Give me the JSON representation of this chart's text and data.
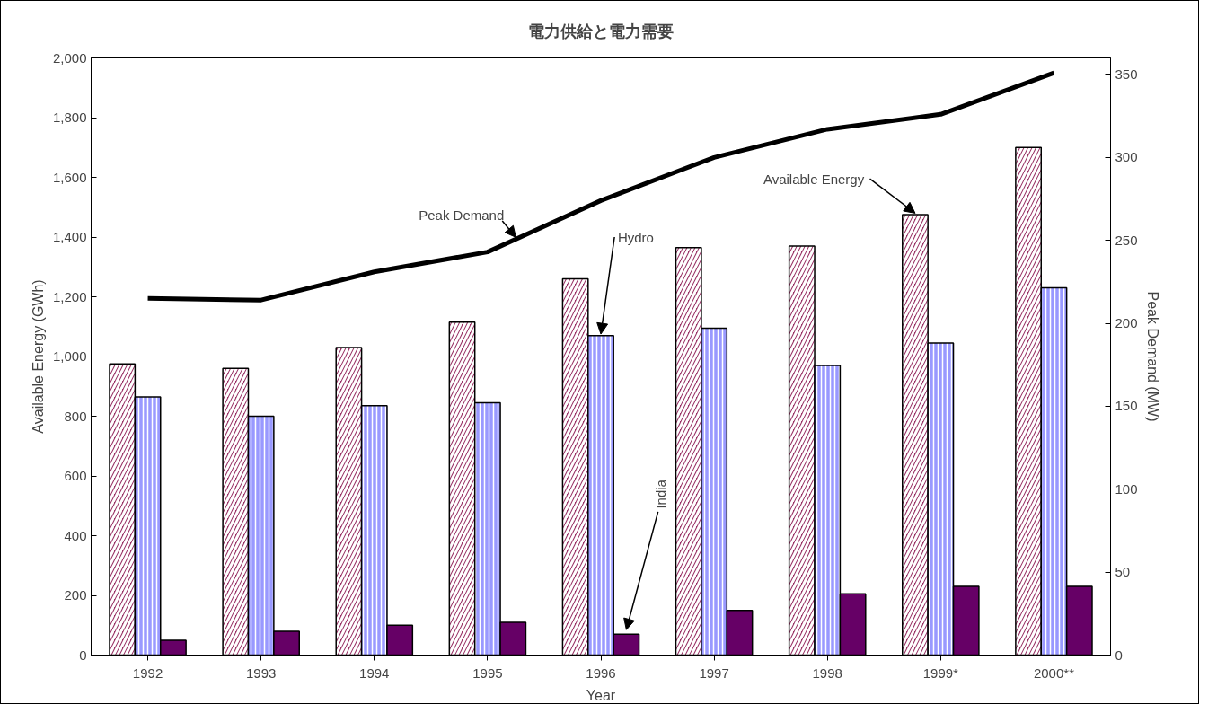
{
  "chart_data": {
    "type": "bar",
    "title": "電力供給と電力需要",
    "xlabel": "Year",
    "ylabel": "Available Energy (GWh)",
    "y2label": "Peak Demand (MW)",
    "categories": [
      "1992",
      "1993",
      "1994",
      "1995",
      "1996",
      "1997",
      "1998",
      "1999*",
      "2000**"
    ],
    "series": [
      {
        "name": "Available Energy",
        "color": "#993366",
        "values": [
          975,
          960,
          1030,
          1115,
          1260,
          1365,
          1370,
          1475,
          1700
        ]
      },
      {
        "name": "Hydro",
        "color": "#9999ff",
        "values": [
          865,
          800,
          835,
          845,
          1070,
          1095,
          970,
          1045,
          1230
        ]
      },
      {
        "name": "India",
        "color": "#660066",
        "values": [
          50,
          80,
          100,
          110,
          70,
          150,
          205,
          230,
          230
        ]
      },
      {
        "name": "Peak Demand",
        "type": "line",
        "axis": "y2",
        "color": "#000000",
        "values": [
          215,
          214,
          231,
          243,
          274,
          300,
          317,
          326,
          351
        ]
      }
    ],
    "ylim": [
      0,
      2000
    ],
    "yticks": [
      0,
      200,
      400,
      600,
      800,
      {
        "value": 1000,
        "label": "1,000"
      },
      {
        "value": 1200,
        "label": "1,200"
      },
      {
        "value": 1400,
        "label": "1,400"
      },
      {
        "value": 1600,
        "label": "1,600"
      },
      {
        "value": 1800,
        "label": "1,800"
      },
      {
        "value": 2000,
        "label": "2,000"
      }
    ],
    "y2lim": [
      0,
      360
    ],
    "y2ticks": [
      0,
      50,
      100,
      150,
      200,
      250,
      300,
      350
    ],
    "grid": false
  }
}
